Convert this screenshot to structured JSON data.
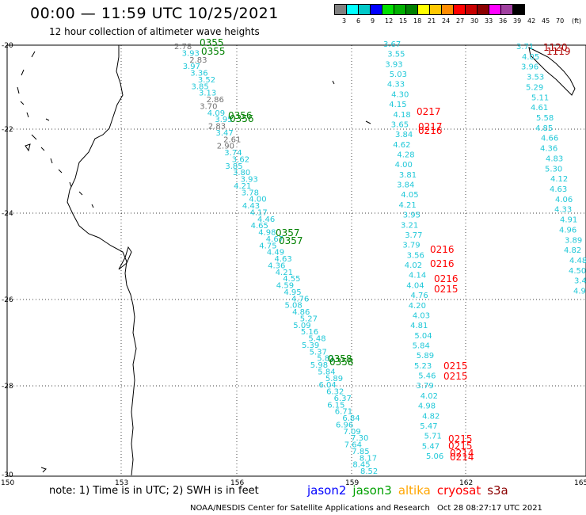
{
  "header": {
    "title": "00:00 — 11:59 UTC 10/25/2021",
    "subtitle": "12 hour collection of altimeter wave heights"
  },
  "legend": {
    "unit": "(ft)",
    "ticks": [
      "3",
      "6",
      "9",
      "12",
      "15",
      "18",
      "21",
      "24",
      "27",
      "30",
      "33",
      "36",
      "39",
      "42",
      "45",
      "70"
    ],
    "colors": [
      "#808080",
      "#00ffff",
      "#00c8c8",
      "#0000ff",
      "#00e000",
      "#00b000",
      "#008000",
      "#ffff00",
      "#ffc800",
      "#ff8c00",
      "#ff0000",
      "#c80000",
      "#8b0000",
      "#ff00ff",
      "#a040a0",
      "#000000"
    ]
  },
  "map": {
    "lat_labels": [
      "-20",
      "-22",
      "-24",
      "-26",
      "-28",
      "-30"
    ],
    "lon_labels": [
      "150",
      "153",
      "156",
      "159",
      "162",
      "165"
    ],
    "colors": {
      "swh": "#20c8d8",
      "grey": "#707070",
      "time_green": "#008000",
      "time_red": "#ff0000"
    }
  },
  "tracks": [
    {
      "name": "track-west",
      "time_labels": [
        {
          "text": "0355",
          "color": "green"
        },
        {
          "text": "0355",
          "color": "green"
        },
        {
          "text": "0356",
          "color": "green"
        },
        {
          "text": "0356",
          "color": "green"
        },
        {
          "text": "0357",
          "color": "green"
        },
        {
          "text": "0357",
          "color": "green"
        },
        {
          "text": "0358",
          "color": "green"
        },
        {
          "text": "0358",
          "color": "green"
        }
      ],
      "values": [
        "2.78",
        "3.93",
        "2.83",
        "3.97",
        "3.36",
        "3.52",
        "3.85",
        "3.13",
        "2.86",
        "3.70",
        "4.09",
        "3.95",
        "2.83",
        "3.47",
        "2.61",
        "2.90",
        "3.74",
        "3.62",
        "3.85",
        "3.80",
        "3.93",
        "4.21",
        "3.78",
        "4.00",
        "4.43",
        "4.17",
        "4.46",
        "4.65",
        "4.98",
        "4.67",
        "4.75",
        "4.49",
        "4.63",
        "4.36",
        "4.21",
        "4.55",
        "4.59",
        "4.95",
        "4.76",
        "5.08",
        "4.86",
        "5.27",
        "5.09",
        "5.16",
        "5.48",
        "5.39",
        "5.37",
        "5.81",
        "5.98",
        "5.84",
        "5.89",
        "6.04",
        "6.32",
        "6.37",
        "6.15",
        "6.71",
        "6.84",
        "6.96",
        "7.09",
        "7.30",
        "7.64",
        "7.85",
        "8.17",
        "8.45",
        "8.52"
      ]
    },
    {
      "name": "track-middle",
      "values": [
        "3.67",
        "3.55",
        "3.93",
        "5.03",
        "4.33",
        "4.30",
        "4.15",
        "4.18",
        "3.65",
        "3.84",
        "4.62",
        "4.28",
        "4.00",
        "3.81",
        "3.84",
        "4.05",
        "4.21",
        "3.95",
        "3.21",
        "3.77",
        "3.79",
        "3.56",
        "4.02",
        "4.14",
        "4.04",
        "4.76",
        "4.20",
        "4.03",
        "4.81",
        "5.04",
        "5.84",
        "5.89",
        "5.23",
        "5.46",
        "3.79",
        "4.02",
        "4.98",
        "4.82",
        "5.47",
        "5.71",
        "5.47",
        "5.06"
      ],
      "time_labels": [
        "0217",
        "0217",
        "0216",
        "0216",
        "0216",
        "0216",
        "0215",
        "0215",
        "0215",
        "0215",
        "0215",
        "0214",
        "0214"
      ]
    },
    {
      "name": "track-east",
      "values": [
        "3.71",
        "4.05",
        "3.96",
        "3.53",
        "5.29",
        "5.11",
        "4.61",
        "5.58",
        "4.85",
        "4.66",
        "4.36",
        "4.83",
        "5.30",
        "4.12",
        "4.63",
        "4.06",
        "4.33",
        "4.91",
        "4.96",
        "3.89",
        "4.82",
        "4.48",
        "4.50",
        "3.42",
        "4.92",
        "3.39",
        "2.6",
        "5.",
        "4."
      ],
      "time_labels": [
        "1120",
        "1119"
      ]
    }
  ],
  "footer": {
    "note": "note: 1) Time is in UTC; 2) SWH is in feet",
    "satellites": [
      {
        "name": "jason2",
        "color": "#0000ff"
      },
      {
        "name": "jason3",
        "color": "#00a000"
      },
      {
        "name": "altika",
        "color": "#ffa500"
      },
      {
        "name": "cryosat",
        "color": "#ff0000"
      },
      {
        "name": "s3a",
        "color": "#8b0000"
      }
    ],
    "credit": "NOAA/NESDIS Center for Satellite Applications and Research",
    "generated": "Oct 28 08:27:17 UTC 2021"
  }
}
